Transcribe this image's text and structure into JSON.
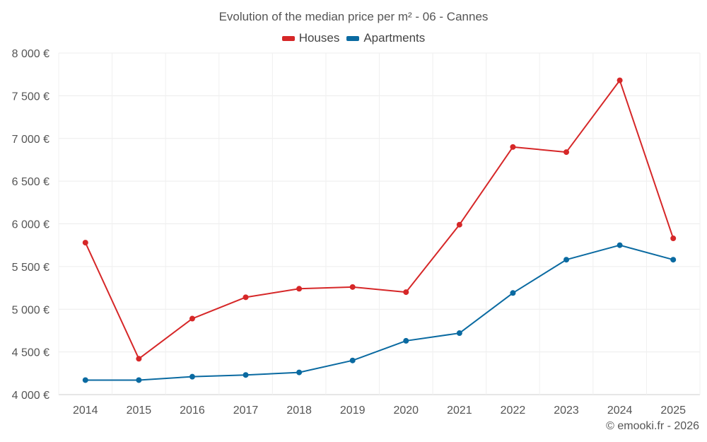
{
  "chart_data": {
    "type": "line",
    "title": "Evolution of the median price per m² - 06 - Cannes",
    "categories": [
      "2014",
      "2015",
      "2016",
      "2017",
      "2018",
      "2019",
      "2020",
      "2021",
      "2022",
      "2023",
      "2024",
      "2025"
    ],
    "series": [
      {
        "name": "Houses",
        "color": "#d62728",
        "values": [
          5780,
          4420,
          4890,
          5140,
          5240,
          5260,
          5200,
          5990,
          6900,
          6840,
          7680,
          5830
        ]
      },
      {
        "name": "Apartments",
        "color": "#0a6aa1",
        "values": [
          4170,
          4170,
          4210,
          4230,
          4260,
          4400,
          4630,
          4720,
          5190,
          5580,
          5750,
          5580
        ]
      }
    ],
    "ylim": [
      4000,
      8000
    ],
    "yticks": [
      4000,
      4500,
      5000,
      5500,
      6000,
      6500,
      7000,
      7500,
      8000
    ],
    "ytick_labels": [
      "4 000 €",
      "4 500 €",
      "5 000 €",
      "5 500 €",
      "6 000 €",
      "6 500 €",
      "7 000 €",
      "7 500 €",
      "8 000 €"
    ],
    "xlabel": "",
    "ylabel": "",
    "grid": true,
    "legend_position": "top-center"
  },
  "legend": {
    "houses_label": "Houses",
    "apartments_label": "Apartments"
  },
  "credit": "© emooki.fr - 2026"
}
